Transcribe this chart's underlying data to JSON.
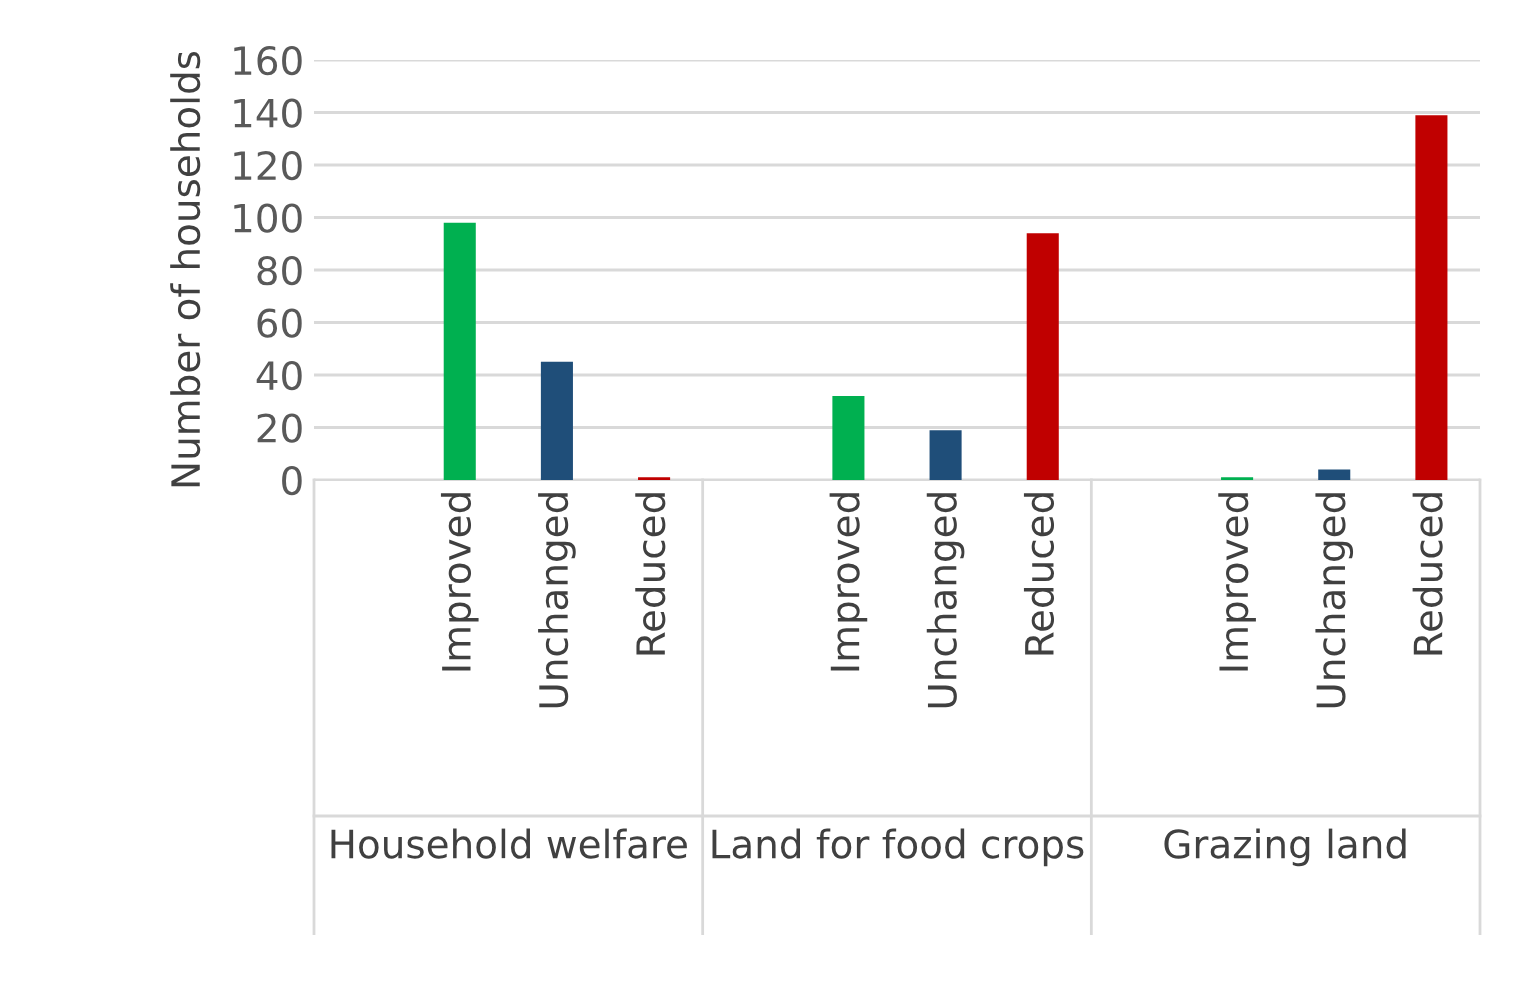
{
  "chart_data": {
    "type": "bar",
    "ylabel": "Number of households",
    "categories": [
      "Improved",
      "Unchanged",
      "Reduced",
      "Improved",
      "Unchanged",
      "Reduced",
      "Improved",
      "Unchanged",
      "Reduced"
    ],
    "values": [
      98,
      45,
      1,
      32,
      19,
      94,
      1,
      4,
      139
    ],
    "colors": [
      "#00b050",
      "#1f4e79",
      "#c00000",
      "#00b050",
      "#1f4e79",
      "#c00000",
      "#00b050",
      "#1f4e79",
      "#c00000"
    ],
    "annotations": [
      "Household welfare",
      "Land for food crops",
      "Grazing land"
    ],
    "ylim": [
      0,
      160
    ],
    "yticks": [
      0,
      20,
      40,
      60,
      80,
      100,
      120,
      140,
      160
    ],
    "grid": "y",
    "legend": false
  }
}
